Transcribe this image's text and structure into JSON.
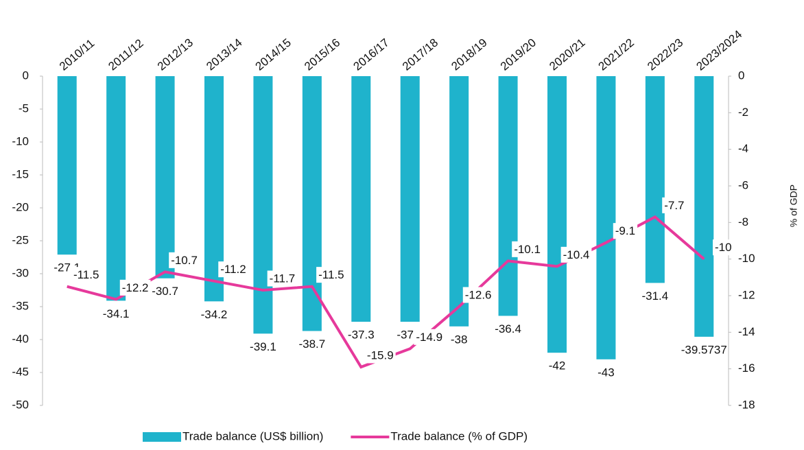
{
  "chart_data": {
    "type": "bar_line",
    "categories": [
      "2010/11",
      "2011/12",
      "2012/13",
      "2013/14",
      "2014/15",
      "2015/16",
      "2016/17",
      "2017/18",
      "2018/19",
      "2019/20",
      "2020/21",
      "2021/22",
      "2022/23",
      "2023/2024"
    ],
    "series": [
      {
        "name": "Trade balance (US$ billion)",
        "color": "#1fb3cc",
        "type": "bar",
        "values": [
          -27.1,
          -34.1,
          -30.7,
          -34.2,
          -39.1,
          -38.7,
          -37.3,
          -37.3,
          -38,
          -36.4,
          -42,
          -43,
          -31.4,
          -39.5737
        ]
      },
      {
        "name": "Trade balance (% of GDP)",
        "color": "#e6399b",
        "type": "line",
        "axis": "y2",
        "values": [
          -11.5,
          -12.2,
          -10.7,
          -11.2,
          -11.7,
          -11.5,
          -15.9,
          -14.9,
          -12.6,
          -10.1,
          -10.4,
          -9.1,
          -7.7,
          -10
        ]
      }
    ],
    "ylim": [
      -50,
      0
    ],
    "yticks": [
      0,
      -5,
      -10,
      -15,
      -20,
      -25,
      -30,
      -35,
      -40,
      -45,
      -50
    ],
    "y2lim": [
      -18,
      0
    ],
    "y2ticks": [
      0,
      -2,
      -4,
      -6,
      -8,
      -10,
      -12,
      -14,
      -16,
      -18
    ],
    "y2label": "% of GDP",
    "legend": "bottom"
  }
}
